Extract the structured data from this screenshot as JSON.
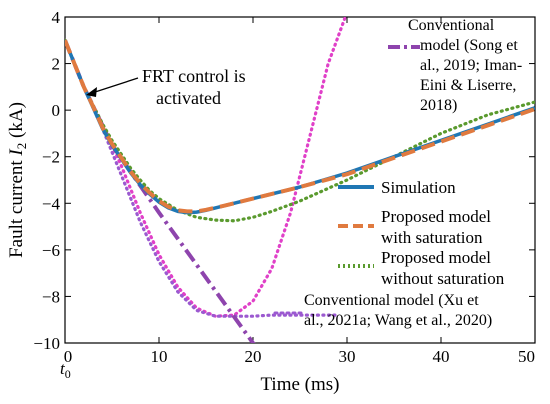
{
  "chart_data": {
    "type": "line",
    "xlabel": "Time (ms)",
    "ylabel": "Fault current I2 (kA)",
    "ylabel_parts": {
      "prefix": "Fault current ",
      "symbol": "I",
      "sub": "2",
      "suffix": " (kA)"
    },
    "xlim": [
      0,
      50
    ],
    "ylim": [
      -10,
      4
    ],
    "x_ticks": [
      "0",
      "10",
      "20",
      "30",
      "40",
      "50"
    ],
    "y_ticks": [
      "4",
      "2",
      "0",
      "−2",
      "−4",
      "−6",
      "−8",
      "−10"
    ],
    "x_tick_values": [
      0,
      10,
      20,
      30,
      40,
      50
    ],
    "y_tick_values": [
      4,
      2,
      0,
      -2,
      -4,
      -6,
      -8,
      -10
    ],
    "t0_label": {
      "symbol": "t",
      "sub": "0"
    },
    "series": [
      {
        "name": "Simulation",
        "color": "#1f77b4",
        "style": "solid",
        "points": [
          [
            0,
            3.0
          ],
          [
            1,
            2.0
          ],
          [
            2,
            1.0
          ],
          [
            3,
            0.1
          ],
          [
            4,
            -0.8
          ],
          [
            5,
            -1.5
          ],
          [
            6,
            -2.1
          ],
          [
            7,
            -2.7
          ],
          [
            8,
            -3.2
          ],
          [
            9,
            -3.6
          ],
          [
            10,
            -3.95
          ],
          [
            11,
            -4.2
          ],
          [
            12,
            -4.35
          ],
          [
            13,
            -4.4
          ],
          [
            14,
            -4.38
          ],
          [
            15,
            -4.3
          ],
          [
            17,
            -4.1
          ],
          [
            20,
            -3.8
          ],
          [
            25,
            -3.3
          ],
          [
            30,
            -2.7
          ],
          [
            35,
            -2.0
          ],
          [
            40,
            -1.3
          ],
          [
            45,
            -0.6
          ],
          [
            50,
            0.1
          ]
        ]
      },
      {
        "name": "Proposed model with saturation",
        "color": "#e07a3f",
        "style": "dashed",
        "points": [
          [
            0,
            3.0
          ],
          [
            1,
            2.0
          ],
          [
            2,
            1.0
          ],
          [
            3,
            0.15
          ],
          [
            4,
            -0.75
          ],
          [
            5,
            -1.45
          ],
          [
            6,
            -2.05
          ],
          [
            7,
            -2.65
          ],
          [
            8,
            -3.15
          ],
          [
            9,
            -3.55
          ],
          [
            10,
            -3.9
          ],
          [
            11,
            -4.15
          ],
          [
            12,
            -4.3
          ],
          [
            13,
            -4.35
          ],
          [
            14,
            -4.35
          ],
          [
            15,
            -4.28
          ],
          [
            17,
            -4.1
          ],
          [
            20,
            -3.8
          ],
          [
            25,
            -3.3
          ],
          [
            30,
            -2.75
          ],
          [
            35,
            -2.05
          ],
          [
            40,
            -1.35
          ],
          [
            45,
            -0.65
          ],
          [
            50,
            0.05
          ]
        ]
      },
      {
        "name": "Proposed model without saturation",
        "color": "#5a9a2e",
        "style": "dotted",
        "points": [
          [
            0,
            3.0
          ],
          [
            1,
            2.0
          ],
          [
            2,
            1.0
          ],
          [
            3,
            0.2
          ],
          [
            4,
            -0.6
          ],
          [
            5,
            -1.3
          ],
          [
            6,
            -1.9
          ],
          [
            7,
            -2.5
          ],
          [
            8,
            -3.0
          ],
          [
            9,
            -3.45
          ],
          [
            10,
            -3.8
          ],
          [
            12,
            -4.3
          ],
          [
            14,
            -4.6
          ],
          [
            16,
            -4.72
          ],
          [
            18,
            -4.75
          ],
          [
            20,
            -4.6
          ],
          [
            22,
            -4.35
          ],
          [
            25,
            -3.9
          ],
          [
            30,
            -3.0
          ],
          [
            35,
            -2.0
          ],
          [
            40,
            -1.0
          ],
          [
            45,
            -0.2
          ],
          [
            50,
            0.35
          ]
        ]
      },
      {
        "name": "Conventional model (Song et al., 2019; Iman-Eini & Liserre, 2018)",
        "color": "#8e44ad",
        "style": "dashdot",
        "points": [
          [
            0,
            3.0
          ],
          [
            1,
            2.0
          ],
          [
            2,
            1.0
          ],
          [
            5,
            -1.5
          ],
          [
            10,
            -4.4
          ],
          [
            15,
            -7.2
          ],
          [
            20,
            -10.0
          ],
          [
            21,
            -10.6
          ]
        ]
      },
      {
        "name": "Conventional model (Xu et al., 2021a; Wang et al., 2020)",
        "color": "#e040c8",
        "style": "dotted",
        "points": [
          [
            0,
            3.0
          ],
          [
            1,
            2.0
          ],
          [
            2,
            1.0
          ],
          [
            4,
            -0.6
          ],
          [
            6,
            -2.4
          ],
          [
            8,
            -4.4
          ],
          [
            10,
            -6.2
          ],
          [
            12,
            -7.6
          ],
          [
            14,
            -8.5
          ],
          [
            16,
            -8.85
          ],
          [
            18,
            -8.8
          ],
          [
            20,
            -8.2
          ],
          [
            22,
            -6.8
          ],
          [
            24,
            -4.4
          ],
          [
            26,
            -1.2
          ],
          [
            28,
            2.0
          ],
          [
            30,
            4.2
          ]
        ]
      },
      {
        "name": "",
        "color": "#9b59d0",
        "style": "dotted",
        "points": [
          [
            2,
            1.0
          ],
          [
            4,
            -0.8
          ],
          [
            6,
            -2.8
          ],
          [
            8,
            -4.8
          ],
          [
            10,
            -6.5
          ],
          [
            12,
            -7.8
          ],
          [
            14,
            -8.6
          ],
          [
            16,
            -8.85
          ],
          [
            18,
            -8.85
          ],
          [
            20,
            -8.85
          ],
          [
            22,
            -8.8
          ],
          [
            24,
            -8.8
          ],
          [
            26,
            -8.8
          ],
          [
            29,
            -8.8
          ]
        ]
      }
    ],
    "annotations": [
      {
        "text_lines": [
          "FRT control is",
          "activated"
        ],
        "arrow_to": [
          2,
          0.8
        ]
      },
      {
        "text_lines": [
          "Conventional",
          "model (Song et",
          "al., 2019; Iman-",
          "Eini & Liserre,",
          "2018)"
        ]
      },
      {
        "text_lines": [
          "Conventional model (Xu et",
          "al., 2021a; Wang et al., 2020)"
        ]
      }
    ],
    "legend": {
      "placement": "right-middle",
      "entries": [
        {
          "lines": [
            "Simulation"
          ],
          "color": "#1f77b4",
          "style": "solid"
        },
        {
          "lines": [
            "Proposed model",
            "with  saturation"
          ],
          "color": "#e07a3f",
          "style": "dashed"
        },
        {
          "lines": [
            "Proposed model",
            "without saturation"
          ],
          "color": "#5a9a2e",
          "style": "dotted"
        }
      ]
    },
    "grid": false
  }
}
